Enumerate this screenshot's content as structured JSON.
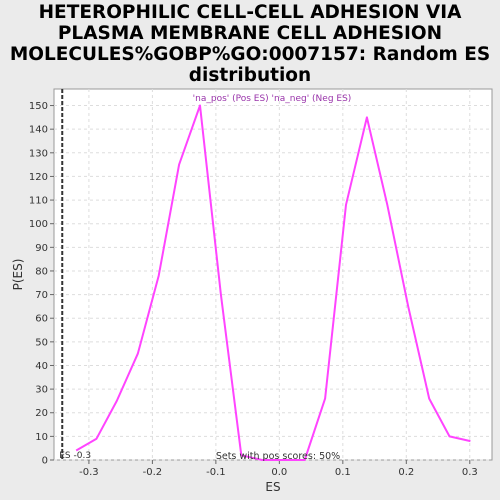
{
  "title_lines": [
    "HETEROPHILIC CELL-CELL ADHESION VIA",
    "PLASMA MEMBRANE CELL ADHESION",
    "MOLECULES%GOBP%GO:0007157: Random ES",
    "distribution"
  ],
  "chart_data": {
    "type": "line",
    "xlabel": "ES",
    "ylabel": "P(ES)",
    "xlim": [
      -0.355,
      0.335
    ],
    "ylim": [
      0,
      157
    ],
    "x_ticks": [
      -0.3,
      -0.2,
      -0.1,
      0.0,
      0.1,
      0.2,
      0.3
    ],
    "x_tick_labels": [
      "-0.3",
      "-0.2",
      "-0.1",
      "0.0",
      "0.1",
      "0.2",
      "0.3"
    ],
    "y_ticks": [
      0,
      10,
      20,
      30,
      40,
      50,
      60,
      70,
      80,
      90,
      100,
      110,
      120,
      130,
      140,
      150
    ],
    "grid": true,
    "legend_text": "'na_pos' (Pos ES)  'na_neg' (Neg ES)",
    "series": [
      {
        "color": "#ff44ff",
        "x": [
          -0.32,
          -0.288,
          -0.256,
          -0.223,
          -0.19,
          -0.158,
          -0.125,
          -0.092,
          -0.06,
          -0.027,
          0.005,
          0.04,
          0.072,
          0.105,
          0.138,
          0.17,
          0.203,
          0.236,
          0.268,
          0.301
        ],
        "y": [
          4,
          9,
          25,
          45,
          78,
          125,
          150,
          70,
          2,
          0,
          0,
          0,
          26,
          108,
          145,
          108,
          65,
          26,
          10,
          8
        ]
      }
    ],
    "marker": {
      "x": -0.342,
      "label": "ES -0.3"
    },
    "annotation": "Sets with pos scores: 50%"
  }
}
